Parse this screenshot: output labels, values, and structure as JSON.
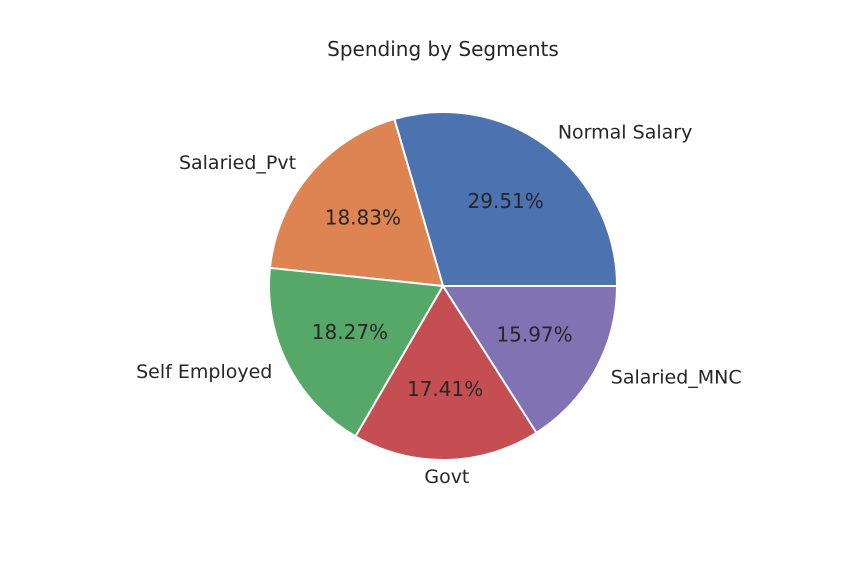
{
  "chart_data": {
    "type": "pie",
    "title": "Spending by Segments",
    "categories": [
      "Normal Salary",
      "Salaried_Pvt",
      "Self Employed",
      "Govt",
      "Salaried_MNC"
    ],
    "values": [
      29.51,
      18.83,
      18.27,
      17.41,
      15.97
    ],
    "value_labels": [
      "29.51%",
      "18.83%",
      "18.27%",
      "17.41%",
      "15.97%"
    ],
    "colors": [
      "#4c72b0",
      "#dd8452",
      "#55a868",
      "#c44e52",
      "#8172b3"
    ],
    "start_angle_deg": 0,
    "direction": "counterclockwise",
    "legend": "none"
  }
}
